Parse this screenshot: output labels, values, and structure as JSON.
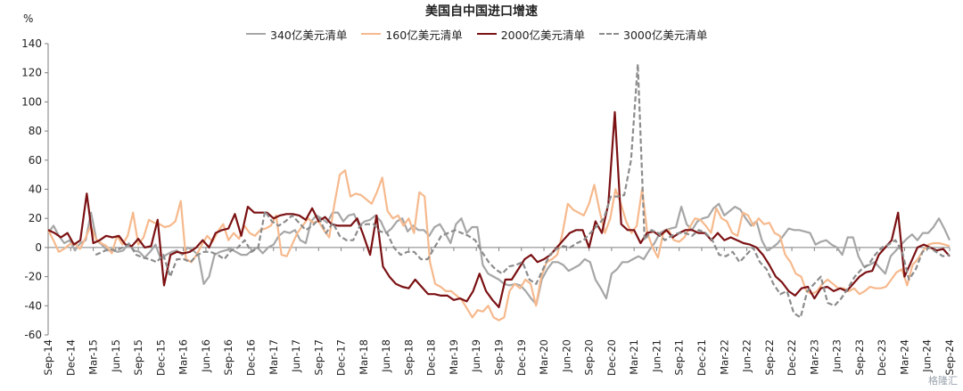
{
  "chart_data": {
    "type": "line",
    "title": "美国自中国进口增速",
    "unit_label": "%",
    "ylim": [
      -60,
      140
    ],
    "y_ticks": [
      140,
      120,
      100,
      80,
      60,
      40,
      20,
      0,
      -20,
      -40,
      -60
    ],
    "x_ticks": [
      "Sep-14",
      "Dec-14",
      "Mar-15",
      "Jun-15",
      "Sep-15",
      "Dec-15",
      "Mar-16",
      "Jun-16",
      "Sep-16",
      "Dec-16",
      "Mar-17",
      "Jun-17",
      "Sep-17",
      "Dec-17",
      "Mar-18",
      "Jun-18",
      "Sep-18",
      "Dec-18",
      "Mar-19",
      "Jun-19",
      "Sep-19",
      "Dec-19",
      "Mar-20",
      "Jun-20",
      "Sep-20",
      "Dec-20",
      "Mar-21",
      "Jun-21",
      "Sep-21",
      "Dec-21",
      "Mar-22",
      "Jun-22",
      "Sep-22",
      "Dec-22",
      "Mar-23",
      "Jun-23",
      "Sep-23",
      "Dec-23",
      "Mar-24",
      "Jun-24",
      "Sep-24"
    ],
    "x_start": "Sep-14",
    "x_end": "Sep-24",
    "grid": false,
    "legend_position": "top",
    "series": [
      {
        "name": "340亿美元清单",
        "color": "#a6a6a6",
        "dash": false,
        "values": [
          10,
          15,
          8,
          3,
          5,
          -2,
          3,
          5,
          24,
          5,
          2,
          -2,
          -2,
          -3,
          -2,
          3,
          -2,
          -3,
          -7,
          -3,
          2,
          -8,
          -5,
          -3,
          -2,
          -5,
          0,
          -2,
          -5,
          -25,
          -20,
          -5,
          -3,
          -2,
          -1,
          -3,
          -5,
          -5,
          -2,
          0,
          -4,
          0,
          2,
          8,
          11,
          10,
          12,
          5,
          3,
          18,
          22,
          20,
          17,
          24,
          24,
          18,
          22,
          23,
          15,
          18,
          19,
          22,
          18,
          10,
          13,
          18,
          20,
          11,
          15,
          12,
          12,
          8,
          14,
          16,
          10,
          3,
          16,
          20,
          10,
          14,
          14,
          -12,
          -18,
          -20,
          -22,
          -25,
          -26,
          -25,
          -26,
          -30,
          -35,
          -39,
          -22,
          -15,
          -10,
          -10,
          -12,
          -16,
          -14,
          -12,
          -8,
          -10,
          -22,
          -28,
          -35,
          -18,
          -15,
          -10,
          -10,
          -8,
          -6,
          -8,
          -2,
          3,
          10,
          12,
          13,
          14,
          28,
          16,
          12,
          18,
          20,
          21,
          27,
          30,
          22,
          25,
          28,
          26,
          20,
          15,
          18,
          5,
          -2,
          0,
          3,
          8,
          13,
          12,
          12,
          11,
          10,
          2,
          4,
          5,
          2,
          0,
          -5,
          7,
          7,
          -6,
          -13,
          -12,
          -10,
          -14,
          -18,
          -6,
          -2,
          2,
          6,
          9,
          5,
          10,
          10,
          14,
          20,
          13,
          5
        ]
      },
      {
        "name": "160亿美元清单",
        "color": "#f6b98d",
        "dash": false,
        "values": [
          12,
          5,
          -3,
          -1,
          2,
          3,
          -1,
          6,
          15,
          6,
          3,
          1,
          -4,
          8,
          2,
          8,
          24,
          2,
          7,
          19,
          17,
          16,
          14,
          15,
          18,
          32,
          -8,
          -10,
          -5,
          2,
          8,
          4,
          11,
          16,
          5,
          10,
          6,
          15,
          10,
          8,
          12,
          13,
          15,
          22,
          -5,
          -6,
          2,
          10,
          15,
          20,
          17,
          18,
          12,
          7,
          30,
          50,
          53,
          35,
          37,
          36,
          33,
          30,
          38,
          48,
          25,
          20,
          22,
          15,
          20,
          10,
          38,
          35,
          -10,
          -25,
          -27,
          -30,
          -30,
          -33,
          -36,
          -42,
          -48,
          -43,
          -44,
          -40,
          -48,
          -50,
          -48,
          -30,
          -25,
          -28,
          -22,
          -25,
          -40,
          -20,
          -10,
          -8,
          -5,
          10,
          30,
          26,
          24,
          22,
          30,
          43,
          25,
          10,
          20,
          40,
          30,
          18,
          10,
          15,
          40,
          10,
          0,
          -7,
          10,
          12,
          5,
          4,
          7,
          14,
          20,
          19,
          15,
          10,
          27,
          20,
          18,
          10,
          8,
          24,
          22,
          15,
          20,
          16,
          17,
          10,
          8,
          -5,
          -10,
          -18,
          -20,
          -30,
          -32,
          -30,
          -25,
          -22,
          -25,
          -28,
          -28,
          -30,
          -28,
          -32,
          -30,
          -27,
          -28,
          -28,
          -27,
          -22,
          -17,
          -15,
          -26,
          -12,
          -8,
          -2,
          2,
          3,
          3,
          2,
          1
        ]
      },
      {
        "name": "2000亿美元清单",
        "color": "#7b1113",
        "dash": false,
        "values": [
          12,
          10,
          7,
          10,
          2,
          5,
          37,
          3,
          5,
          8,
          7,
          8,
          2,
          1,
          6,
          0,
          1,
          19,
          -26,
          -5,
          -3,
          -4,
          -3,
          0,
          5,
          0,
          10,
          12,
          13,
          23,
          8,
          28,
          24,
          24,
          24,
          20,
          22,
          23,
          23,
          22,
          19,
          27,
          18,
          21,
          16,
          15,
          15,
          15,
          20,
          8,
          -5,
          22,
          -13,
          -20,
          -25,
          -27,
          -28,
          -22,
          -27,
          -32,
          -32,
          -33,
          -33,
          -36,
          -35,
          -37,
          -30,
          -18,
          -30,
          -36,
          -41,
          -22,
          -22,
          -15,
          -8,
          -5,
          -10,
          -8,
          -5,
          0,
          5,
          10,
          12,
          12,
          0,
          18,
          10,
          30,
          93,
          16,
          12,
          12,
          3,
          10,
          11,
          8,
          12,
          7,
          10,
          12,
          12,
          10,
          10,
          5,
          10,
          5,
          7,
          5,
          3,
          2,
          0,
          -5,
          -12,
          -20,
          -24,
          -30,
          -33,
          -28,
          -27,
          -35,
          -28,
          -27,
          -30,
          -28,
          -30,
          -25,
          -20,
          -17,
          -16,
          -5,
          0,
          5,
          24,
          -20,
          -10,
          0,
          2,
          0,
          -2,
          -1,
          -6
        ]
      },
      {
        "name": "3000亿美元清单",
        "color": "#8c8c8c",
        "dash": true,
        "values": [
          null,
          null,
          null,
          null,
          null,
          null,
          null,
          -5,
          -3,
          -1,
          -2,
          0,
          2,
          -5,
          -7,
          -8,
          -10,
          -5,
          -20,
          -8,
          -8,
          -10,
          -5,
          -3,
          -3,
          -5,
          -8,
          -2,
          0,
          5,
          -3,
          0,
          25,
          18,
          15,
          18,
          22,
          17,
          12,
          15,
          20,
          10,
          17,
          8,
          5,
          5,
          15,
          16,
          16,
          11,
          10,
          0,
          -5,
          -3,
          -3,
          -8,
          -8,
          0,
          8,
          10,
          12,
          10,
          8,
          5,
          -3,
          -10,
          -15,
          -18,
          -13,
          -12,
          -10,
          -22,
          -25,
          -15,
          -5,
          -1,
          1,
          0,
          3,
          5,
          10,
          15,
          20,
          35,
          35,
          36,
          60,
          126,
          5,
          12,
          10,
          5,
          8,
          10,
          10,
          8,
          12,
          10,
          5,
          -5,
          -6,
          -3,
          -10,
          -5,
          0,
          -10,
          -15,
          -25,
          -32,
          -30,
          -45,
          -48,
          -30,
          -25,
          -20,
          -38,
          -40,
          -35,
          -28,
          -20,
          -15,
          -12,
          -5,
          0,
          2,
          5,
          -3,
          -22,
          -15,
          -3,
          0,
          -3,
          -6,
          -5
        ]
      }
    ]
  },
  "watermark": "格隆汇"
}
